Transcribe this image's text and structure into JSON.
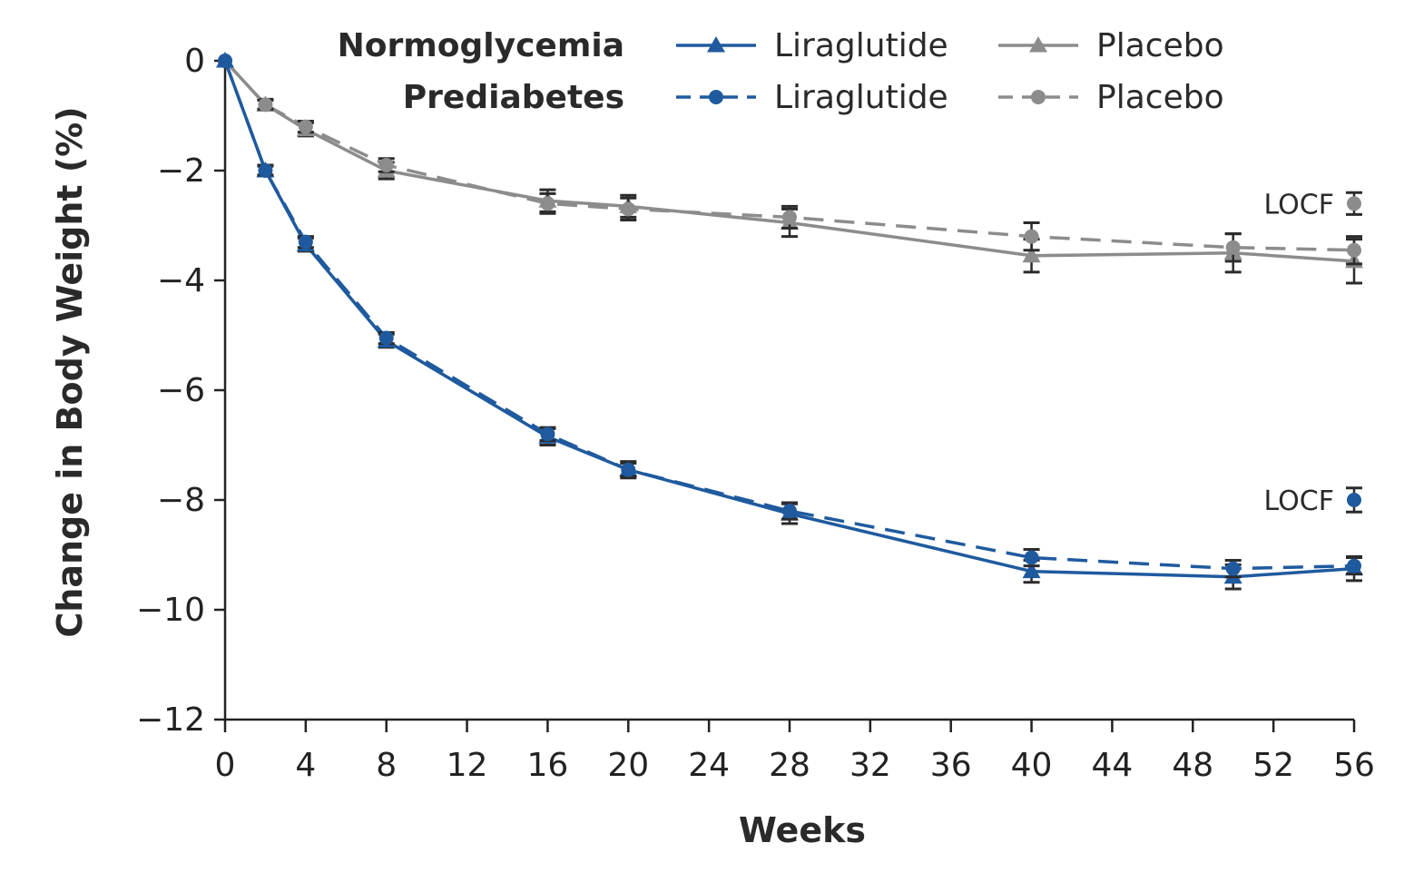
{
  "chart_data": {
    "type": "line",
    "title": "",
    "xlabel": "Weeks",
    "ylabel": "Change in Body Weight (%)",
    "xlim": [
      0,
      56
    ],
    "ylim": [
      -12,
      0
    ],
    "x_ticks": [
      0,
      4,
      8,
      12,
      16,
      20,
      24,
      28,
      32,
      36,
      40,
      44,
      48,
      52,
      56
    ],
    "y_ticks": [
      0,
      -2,
      -4,
      -6,
      -8,
      -10,
      -12
    ],
    "y_tick_labels": [
      "0",
      "−2",
      "−4",
      "−6",
      "−8",
      "−10",
      "−12"
    ],
    "x_tick_labels": [
      "0",
      "4",
      "8",
      "12",
      "16",
      "20",
      "24",
      "28",
      "32",
      "36",
      "40",
      "44",
      "48",
      "52",
      "56"
    ],
    "legend": {
      "placement": "top-right",
      "groups": [
        {
          "label": "Normoglycemia",
          "entries": [
            "Liraglutide",
            "Placebo"
          ]
        },
        {
          "label": "Prediabetes",
          "entries": [
            "Liraglutide",
            "Placebo"
          ]
        }
      ]
    },
    "colors": {
      "liraglutide": "#1f5a9e",
      "placebo": "#8c8c8c",
      "error_bar": "#2b2b2b"
    },
    "series": [
      {
        "name": "Normoglycemia Liraglutide",
        "group": "Normoglycemia",
        "treatment": "Liraglutide",
        "line_style": "solid",
        "marker": "triangle",
        "x": [
          0,
          2,
          4,
          8,
          16,
          20,
          28,
          40,
          50,
          56
        ],
        "y": [
          0,
          -2.0,
          -3.35,
          -5.1,
          -6.85,
          -7.45,
          -8.25,
          -9.3,
          -9.4,
          -9.25
        ],
        "err": [
          0,
          0.1,
          0.12,
          0.12,
          0.15,
          0.15,
          0.18,
          0.2,
          0.22,
          0.22
        ]
      },
      {
        "name": "Normoglycemia Placebo",
        "group": "Normoglycemia",
        "treatment": "Placebo",
        "line_style": "solid",
        "marker": "triangle",
        "x": [
          0,
          2,
          4,
          8,
          16,
          20,
          28,
          40,
          50,
          56
        ],
        "y": [
          0,
          -0.8,
          -1.25,
          -2.0,
          -2.55,
          -2.65,
          -2.95,
          -3.55,
          -3.5,
          -3.65
        ],
        "err": [
          0,
          0.1,
          0.12,
          0.15,
          0.2,
          0.2,
          0.25,
          0.3,
          0.35,
          0.4
        ]
      },
      {
        "name": "Prediabetes Liraglutide",
        "group": "Prediabetes",
        "treatment": "Liraglutide",
        "line_style": "dashed",
        "marker": "circle",
        "x": [
          0,
          2,
          4,
          8,
          16,
          20,
          28,
          40,
          50,
          56
        ],
        "y": [
          0,
          -2.0,
          -3.3,
          -5.05,
          -6.8,
          -7.45,
          -8.2,
          -9.05,
          -9.25,
          -9.2
        ],
        "err": [
          0,
          0.08,
          0.1,
          0.1,
          0.12,
          0.12,
          0.15,
          0.15,
          0.15,
          0.15
        ]
      },
      {
        "name": "Prediabetes Placebo",
        "group": "Prediabetes",
        "treatment": "Placebo",
        "line_style": "dashed",
        "marker": "circle",
        "x": [
          0,
          2,
          4,
          8,
          16,
          20,
          28,
          40,
          50,
          56
        ],
        "y": [
          0,
          -0.8,
          -1.2,
          -1.9,
          -2.6,
          -2.7,
          -2.85,
          -3.2,
          -3.4,
          -3.45
        ],
        "err": [
          0,
          0.08,
          0.1,
          0.12,
          0.18,
          0.2,
          0.2,
          0.25,
          0.25,
          0.25
        ]
      }
    ],
    "locf": [
      {
        "label": "LOCF",
        "treatment": "Placebo",
        "x": 56,
        "y": -2.6,
        "err": 0.2
      },
      {
        "label": "LOCF",
        "treatment": "Liraglutide",
        "x": 56,
        "y": -8.0,
        "err": 0.22
      }
    ]
  }
}
